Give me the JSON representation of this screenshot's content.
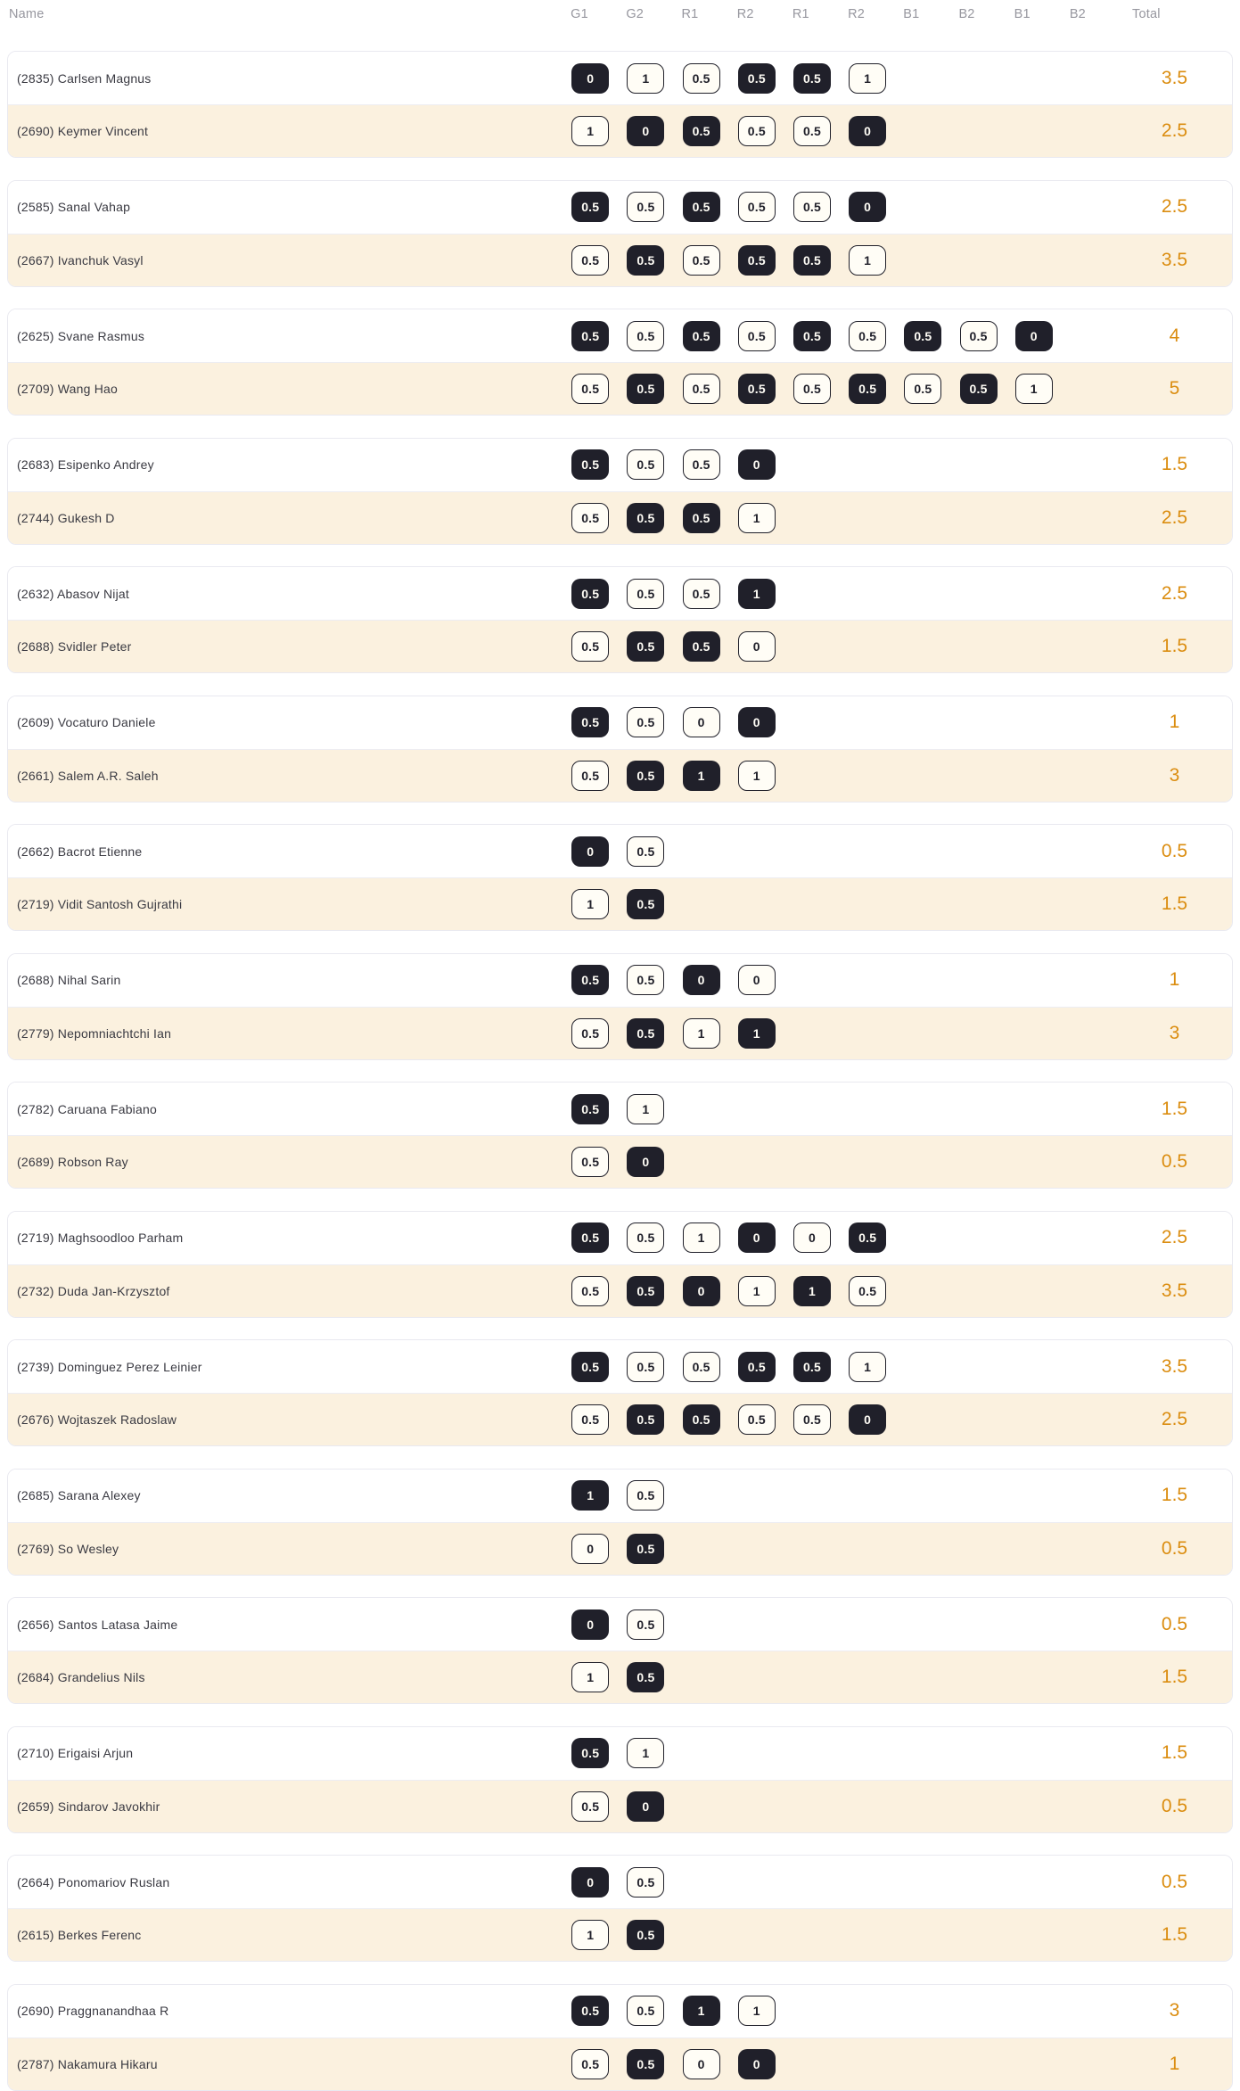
{
  "table": {
    "name_header": "Name",
    "round_headers": [
      "G1",
      "G2",
      "R1",
      "R2",
      "R1",
      "R2",
      "B1",
      "B2",
      "B1",
      "B2"
    ],
    "total_header": "Total"
  },
  "colors": {
    "total_text": "#db8d10",
    "chip_dark_bg": "#20202a",
    "chip_light_bg": "#fffdf6",
    "alt_row_bg": "#fbf1df",
    "header_text": "#97979f"
  },
  "matches": [
    {
      "players": [
        {
          "label": "(2835) Carlsen Magnus",
          "total": "3.5",
          "games": [
            {
              "value": "0",
              "variant": "dark"
            },
            {
              "value": "1",
              "variant": "light"
            },
            {
              "value": "0.5",
              "variant": "light"
            },
            {
              "value": "0.5",
              "variant": "dark"
            },
            {
              "value": "0.5",
              "variant": "dark"
            },
            {
              "value": "1",
              "variant": "light"
            }
          ]
        },
        {
          "label": "(2690) Keymer Vincent",
          "total": "2.5",
          "games": [
            {
              "value": "1",
              "variant": "light"
            },
            {
              "value": "0",
              "variant": "dark"
            },
            {
              "value": "0.5",
              "variant": "dark"
            },
            {
              "value": "0.5",
              "variant": "light"
            },
            {
              "value": "0.5",
              "variant": "light"
            },
            {
              "value": "0",
              "variant": "dark"
            }
          ]
        }
      ]
    },
    {
      "players": [
        {
          "label": "(2585) Sanal Vahap",
          "total": "2.5",
          "games": [
            {
              "value": "0.5",
              "variant": "dark"
            },
            {
              "value": "0.5",
              "variant": "light"
            },
            {
              "value": "0.5",
              "variant": "dark"
            },
            {
              "value": "0.5",
              "variant": "light"
            },
            {
              "value": "0.5",
              "variant": "light"
            },
            {
              "value": "0",
              "variant": "dark"
            }
          ]
        },
        {
          "label": "(2667) Ivanchuk Vasyl",
          "total": "3.5",
          "games": [
            {
              "value": "0.5",
              "variant": "light"
            },
            {
              "value": "0.5",
              "variant": "dark"
            },
            {
              "value": "0.5",
              "variant": "light"
            },
            {
              "value": "0.5",
              "variant": "dark"
            },
            {
              "value": "0.5",
              "variant": "dark"
            },
            {
              "value": "1",
              "variant": "light"
            }
          ]
        }
      ]
    },
    {
      "players": [
        {
          "label": "(2625) Svane Rasmus",
          "total": "4",
          "games": [
            {
              "value": "0.5",
              "variant": "dark"
            },
            {
              "value": "0.5",
              "variant": "light"
            },
            {
              "value": "0.5",
              "variant": "dark"
            },
            {
              "value": "0.5",
              "variant": "light"
            },
            {
              "value": "0.5",
              "variant": "dark"
            },
            {
              "value": "0.5",
              "variant": "light"
            },
            {
              "value": "0.5",
              "variant": "dark"
            },
            {
              "value": "0.5",
              "variant": "light"
            },
            {
              "value": "0",
              "variant": "dark"
            }
          ]
        },
        {
          "label": "(2709) Wang Hao",
          "total": "5",
          "games": [
            {
              "value": "0.5",
              "variant": "light"
            },
            {
              "value": "0.5",
              "variant": "dark"
            },
            {
              "value": "0.5",
              "variant": "light"
            },
            {
              "value": "0.5",
              "variant": "dark"
            },
            {
              "value": "0.5",
              "variant": "light"
            },
            {
              "value": "0.5",
              "variant": "dark"
            },
            {
              "value": "0.5",
              "variant": "light"
            },
            {
              "value": "0.5",
              "variant": "dark"
            },
            {
              "value": "1",
              "variant": "light"
            }
          ]
        }
      ]
    },
    {
      "players": [
        {
          "label": "(2683) Esipenko Andrey",
          "total": "1.5",
          "games": [
            {
              "value": "0.5",
              "variant": "dark"
            },
            {
              "value": "0.5",
              "variant": "light"
            },
            {
              "value": "0.5",
              "variant": "light"
            },
            {
              "value": "0",
              "variant": "dark"
            }
          ]
        },
        {
          "label": "(2744) Gukesh D",
          "total": "2.5",
          "games": [
            {
              "value": "0.5",
              "variant": "light"
            },
            {
              "value": "0.5",
              "variant": "dark"
            },
            {
              "value": "0.5",
              "variant": "dark"
            },
            {
              "value": "1",
              "variant": "light"
            }
          ]
        }
      ]
    },
    {
      "players": [
        {
          "label": "(2632) Abasov Nijat",
          "total": "2.5",
          "games": [
            {
              "value": "0.5",
              "variant": "dark"
            },
            {
              "value": "0.5",
              "variant": "light"
            },
            {
              "value": "0.5",
              "variant": "light"
            },
            {
              "value": "1",
              "variant": "dark"
            }
          ]
        },
        {
          "label": "(2688) Svidler Peter",
          "total": "1.5",
          "games": [
            {
              "value": "0.5",
              "variant": "light"
            },
            {
              "value": "0.5",
              "variant": "dark"
            },
            {
              "value": "0.5",
              "variant": "dark"
            },
            {
              "value": "0",
              "variant": "light"
            }
          ]
        }
      ]
    },
    {
      "players": [
        {
          "label": "(2609) Vocaturo Daniele",
          "total": "1",
          "games": [
            {
              "value": "0.5",
              "variant": "dark"
            },
            {
              "value": "0.5",
              "variant": "light"
            },
            {
              "value": "0",
              "variant": "light"
            },
            {
              "value": "0",
              "variant": "dark"
            }
          ]
        },
        {
          "label": "(2661) Salem A.R. Saleh",
          "total": "3",
          "games": [
            {
              "value": "0.5",
              "variant": "light"
            },
            {
              "value": "0.5",
              "variant": "dark"
            },
            {
              "value": "1",
              "variant": "dark"
            },
            {
              "value": "1",
              "variant": "light"
            }
          ]
        }
      ]
    },
    {
      "players": [
        {
          "label": "(2662) Bacrot Etienne",
          "total": "0.5",
          "games": [
            {
              "value": "0",
              "variant": "dark"
            },
            {
              "value": "0.5",
              "variant": "light"
            }
          ]
        },
        {
          "label": "(2719) Vidit Santosh Gujrathi",
          "total": "1.5",
          "games": [
            {
              "value": "1",
              "variant": "light"
            },
            {
              "value": "0.5",
              "variant": "dark"
            }
          ]
        }
      ]
    },
    {
      "players": [
        {
          "label": "(2688) Nihal Sarin",
          "total": "1",
          "games": [
            {
              "value": "0.5",
              "variant": "dark"
            },
            {
              "value": "0.5",
              "variant": "light"
            },
            {
              "value": "0",
              "variant": "dark"
            },
            {
              "value": "0",
              "variant": "light"
            }
          ]
        },
        {
          "label": "(2779) Nepomniachtchi Ian",
          "total": "3",
          "games": [
            {
              "value": "0.5",
              "variant": "light"
            },
            {
              "value": "0.5",
              "variant": "dark"
            },
            {
              "value": "1",
              "variant": "light"
            },
            {
              "value": "1",
              "variant": "dark"
            }
          ]
        }
      ]
    },
    {
      "players": [
        {
          "label": "(2782) Caruana Fabiano",
          "total": "1.5",
          "games": [
            {
              "value": "0.5",
              "variant": "dark"
            },
            {
              "value": "1",
              "variant": "light"
            }
          ]
        },
        {
          "label": "(2689) Robson Ray",
          "total": "0.5",
          "games": [
            {
              "value": "0.5",
              "variant": "light"
            },
            {
              "value": "0",
              "variant": "dark"
            }
          ]
        }
      ]
    },
    {
      "players": [
        {
          "label": "(2719) Maghsoodloo Parham",
          "total": "2.5",
          "games": [
            {
              "value": "0.5",
              "variant": "dark"
            },
            {
              "value": "0.5",
              "variant": "light"
            },
            {
              "value": "1",
              "variant": "light"
            },
            {
              "value": "0",
              "variant": "dark"
            },
            {
              "value": "0",
              "variant": "light"
            },
            {
              "value": "0.5",
              "variant": "dark"
            }
          ]
        },
        {
          "label": "(2732) Duda Jan-Krzysztof",
          "total": "3.5",
          "games": [
            {
              "value": "0.5",
              "variant": "light"
            },
            {
              "value": "0.5",
              "variant": "dark"
            },
            {
              "value": "0",
              "variant": "dark"
            },
            {
              "value": "1",
              "variant": "light"
            },
            {
              "value": "1",
              "variant": "dark"
            },
            {
              "value": "0.5",
              "variant": "light"
            }
          ]
        }
      ]
    },
    {
      "players": [
        {
          "label": "(2739) Dominguez Perez Leinier",
          "total": "3.5",
          "games": [
            {
              "value": "0.5",
              "variant": "dark"
            },
            {
              "value": "0.5",
              "variant": "light"
            },
            {
              "value": "0.5",
              "variant": "light"
            },
            {
              "value": "0.5",
              "variant": "dark"
            },
            {
              "value": "0.5",
              "variant": "dark"
            },
            {
              "value": "1",
              "variant": "light"
            }
          ]
        },
        {
          "label": "(2676) Wojtaszek Radoslaw",
          "total": "2.5",
          "games": [
            {
              "value": "0.5",
              "variant": "light"
            },
            {
              "value": "0.5",
              "variant": "dark"
            },
            {
              "value": "0.5",
              "variant": "dark"
            },
            {
              "value": "0.5",
              "variant": "light"
            },
            {
              "value": "0.5",
              "variant": "light"
            },
            {
              "value": "0",
              "variant": "dark"
            }
          ]
        }
      ]
    },
    {
      "players": [
        {
          "label": "(2685) Sarana Alexey",
          "total": "1.5",
          "games": [
            {
              "value": "1",
              "variant": "dark"
            },
            {
              "value": "0.5",
              "variant": "light"
            }
          ]
        },
        {
          "label": "(2769) So Wesley",
          "total": "0.5",
          "games": [
            {
              "value": "0",
              "variant": "light"
            },
            {
              "value": "0.5",
              "variant": "dark"
            }
          ]
        }
      ]
    },
    {
      "players": [
        {
          "label": "(2656) Santos Latasa Jaime",
          "total": "0.5",
          "games": [
            {
              "value": "0",
              "variant": "dark"
            },
            {
              "value": "0.5",
              "variant": "light"
            }
          ]
        },
        {
          "label": "(2684) Grandelius Nils",
          "total": "1.5",
          "games": [
            {
              "value": "1",
              "variant": "light"
            },
            {
              "value": "0.5",
              "variant": "dark"
            }
          ]
        }
      ]
    },
    {
      "players": [
        {
          "label": "(2710) Erigaisi Arjun",
          "total": "1.5",
          "games": [
            {
              "value": "0.5",
              "variant": "dark"
            },
            {
              "value": "1",
              "variant": "light"
            }
          ]
        },
        {
          "label": "(2659) Sindarov Javokhir",
          "total": "0.5",
          "games": [
            {
              "value": "0.5",
              "variant": "light"
            },
            {
              "value": "0",
              "variant": "dark"
            }
          ]
        }
      ]
    },
    {
      "players": [
        {
          "label": "(2664) Ponomariov Ruslan",
          "total": "0.5",
          "games": [
            {
              "value": "0",
              "variant": "dark"
            },
            {
              "value": "0.5",
              "variant": "light"
            }
          ]
        },
        {
          "label": "(2615) Berkes Ferenc",
          "total": "1.5",
          "games": [
            {
              "value": "1",
              "variant": "light"
            },
            {
              "value": "0.5",
              "variant": "dark"
            }
          ]
        }
      ]
    },
    {
      "players": [
        {
          "label": "(2690) Praggnanandhaa R",
          "total": "3",
          "games": [
            {
              "value": "0.5",
              "variant": "dark"
            },
            {
              "value": "0.5",
              "variant": "light"
            },
            {
              "value": "1",
              "variant": "dark"
            },
            {
              "value": "1",
              "variant": "light"
            }
          ]
        },
        {
          "label": "(2787) Nakamura Hikaru",
          "total": "1",
          "games": [
            {
              "value": "0.5",
              "variant": "light"
            },
            {
              "value": "0.5",
              "variant": "dark"
            },
            {
              "value": "0",
              "variant": "light"
            },
            {
              "value": "0",
              "variant": "dark"
            }
          ]
        }
      ]
    }
  ]
}
